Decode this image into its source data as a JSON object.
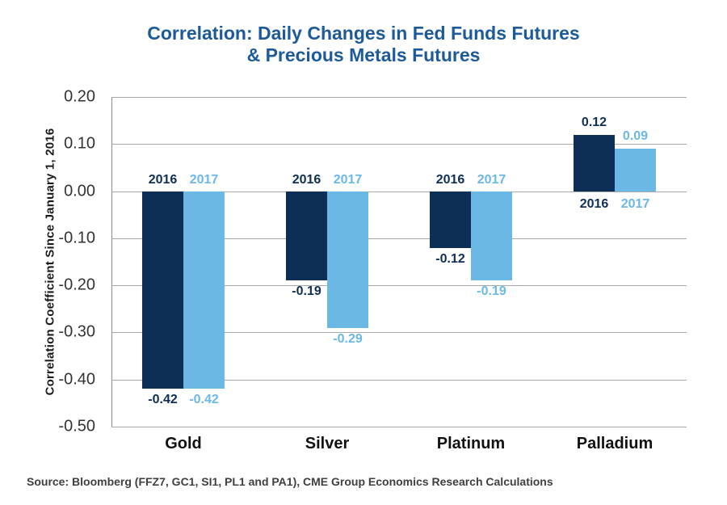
{
  "title": {
    "line1": "Correlation: Daily Changes in Fed Funds Futures",
    "line2": "& Precious Metals Futures"
  },
  "y_axis": {
    "title": "Correlation Coefficient Since January 1, 2016"
  },
  "source": "Source: Bloomberg (FFZ7, GC1, SI1, PL1 and PA1), CME Group Economics Research Calculations",
  "colors": {
    "title_blue": "#1c5a99",
    "series_2016_navy": "#0e2f55",
    "series_2017_light_blue": "#6cb8e5",
    "gridline_gray": "#a9a9a9",
    "axis_gray": "#8a8a8a"
  },
  "chart_data": {
    "type": "bar",
    "title": "Correlation: Daily Changes in Fed Funds Futures & Precious Metals Futures",
    "categories": [
      "Gold",
      "Silver",
      "Platinum",
      "Palladium"
    ],
    "series": [
      {
        "name": "2016",
        "color": "#0e2f55",
        "values": [
          -0.42,
          -0.19,
          -0.12,
          0.12
        ],
        "labels": [
          "-0.42",
          "-0.19",
          "-0.12",
          "0.12"
        ]
      },
      {
        "name": "2017",
        "color": "#6cb8e5",
        "values": [
          -0.42,
          -0.29,
          -0.19,
          0.09
        ],
        "labels": [
          "-0.42",
          "-0.29",
          "-0.19",
          "0.09"
        ]
      }
    ],
    "xlabel": "",
    "ylabel": "Correlation Coefficient Since January 1, 2016",
    "ylim": [
      -0.5,
      0.2
    ],
    "ytick_step": 0.1,
    "yticks": [
      "0.20",
      "0.10",
      "0.00",
      "-0.10",
      "-0.20",
      "-0.30",
      "-0.40",
      "-0.50"
    ],
    "grid": true,
    "legend_position": "inline year labels at zero line of each group",
    "source": "Source: Bloomberg (FFZ7, GC1, SI1, PL1 and PA1), CME Group Economics Research Calculations"
  }
}
